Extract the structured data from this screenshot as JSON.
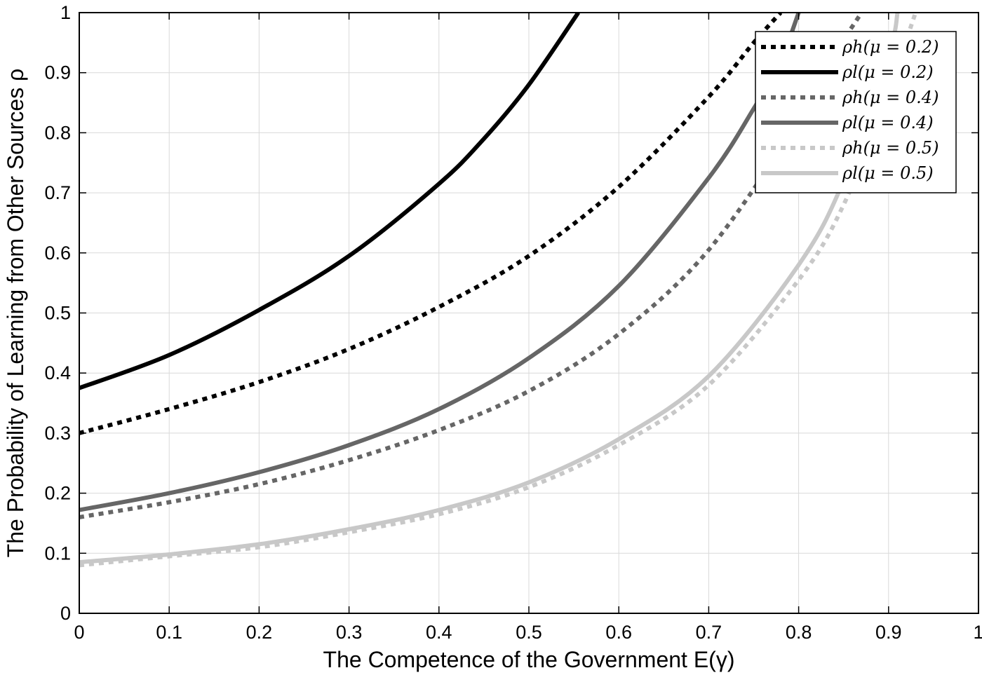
{
  "chart_data": {
    "type": "line",
    "xlabel": "The Competence of the Government E(γ)",
    "ylabel": "The Probability of Learning from Other Sources ρ",
    "xlim": [
      0,
      1
    ],
    "ylim": [
      0,
      1
    ],
    "x_ticks": [
      "0",
      "0.1",
      "0.2",
      "0.3",
      "0.4",
      "0.5",
      "0.6",
      "0.7",
      "0.8",
      "0.9",
      "1"
    ],
    "y_ticks": [
      "0",
      "0.1",
      "0.2",
      "0.3",
      "0.4",
      "0.5",
      "0.6",
      "0.7",
      "0.8",
      "0.9",
      "1"
    ],
    "grid": true,
    "legend_position": "top-right",
    "series": [
      {
        "name": "ρh(μ = 0.2)",
        "color": "#000000",
        "style": "dotted",
        "x": [
          0,
          0.1,
          0.2,
          0.3,
          0.4,
          0.5,
          0.6,
          0.7,
          0.75,
          0.78
        ],
        "y": [
          0.3,
          0.34,
          0.385,
          0.44,
          0.51,
          0.595,
          0.71,
          0.86,
          0.95,
          1.0
        ]
      },
      {
        "name": "ρl(μ = 0.2)",
        "color": "#000000",
        "style": "solid",
        "x": [
          0,
          0.1,
          0.2,
          0.3,
          0.4,
          0.45,
          0.5,
          0.555
        ],
        "y": [
          0.375,
          0.43,
          0.505,
          0.595,
          0.715,
          0.79,
          0.88,
          1.0
        ]
      },
      {
        "name": "ρh(μ = 0.4)",
        "color": "#666666",
        "style": "dotted",
        "x": [
          0,
          0.1,
          0.2,
          0.3,
          0.4,
          0.5,
          0.6,
          0.7,
          0.8,
          0.84,
          0.87
        ],
        "y": [
          0.16,
          0.185,
          0.215,
          0.255,
          0.305,
          0.37,
          0.465,
          0.605,
          0.82,
          0.93,
          1.0
        ]
      },
      {
        "name": "ρl(μ = 0.4)",
        "color": "#666666",
        "style": "solid",
        "x": [
          0,
          0.1,
          0.2,
          0.3,
          0.4,
          0.5,
          0.6,
          0.7,
          0.75,
          0.78,
          0.8
        ],
        "y": [
          0.172,
          0.2,
          0.235,
          0.28,
          0.34,
          0.425,
          0.545,
          0.725,
          0.84,
          0.92,
          1.0
        ]
      },
      {
        "name": "ρh(μ = 0.5)",
        "color": "#c8c8c8",
        "style": "dotted",
        "x": [
          0,
          0.1,
          0.2,
          0.3,
          0.4,
          0.5,
          0.6,
          0.7,
          0.8,
          0.85,
          0.9,
          0.93
        ],
        "y": [
          0.08,
          0.095,
          0.11,
          0.135,
          0.165,
          0.21,
          0.28,
          0.38,
          0.555,
          0.68,
          0.87,
          1.0
        ]
      },
      {
        "name": "ρl(μ = 0.5)",
        "color": "#c8c8c8",
        "style": "solid",
        "x": [
          0,
          0.1,
          0.2,
          0.3,
          0.4,
          0.5,
          0.6,
          0.7,
          0.8,
          0.85,
          0.9,
          0.91
        ],
        "y": [
          0.085,
          0.098,
          0.115,
          0.14,
          0.172,
          0.218,
          0.29,
          0.395,
          0.58,
          0.72,
          0.93,
          1.0
        ]
      }
    ]
  }
}
